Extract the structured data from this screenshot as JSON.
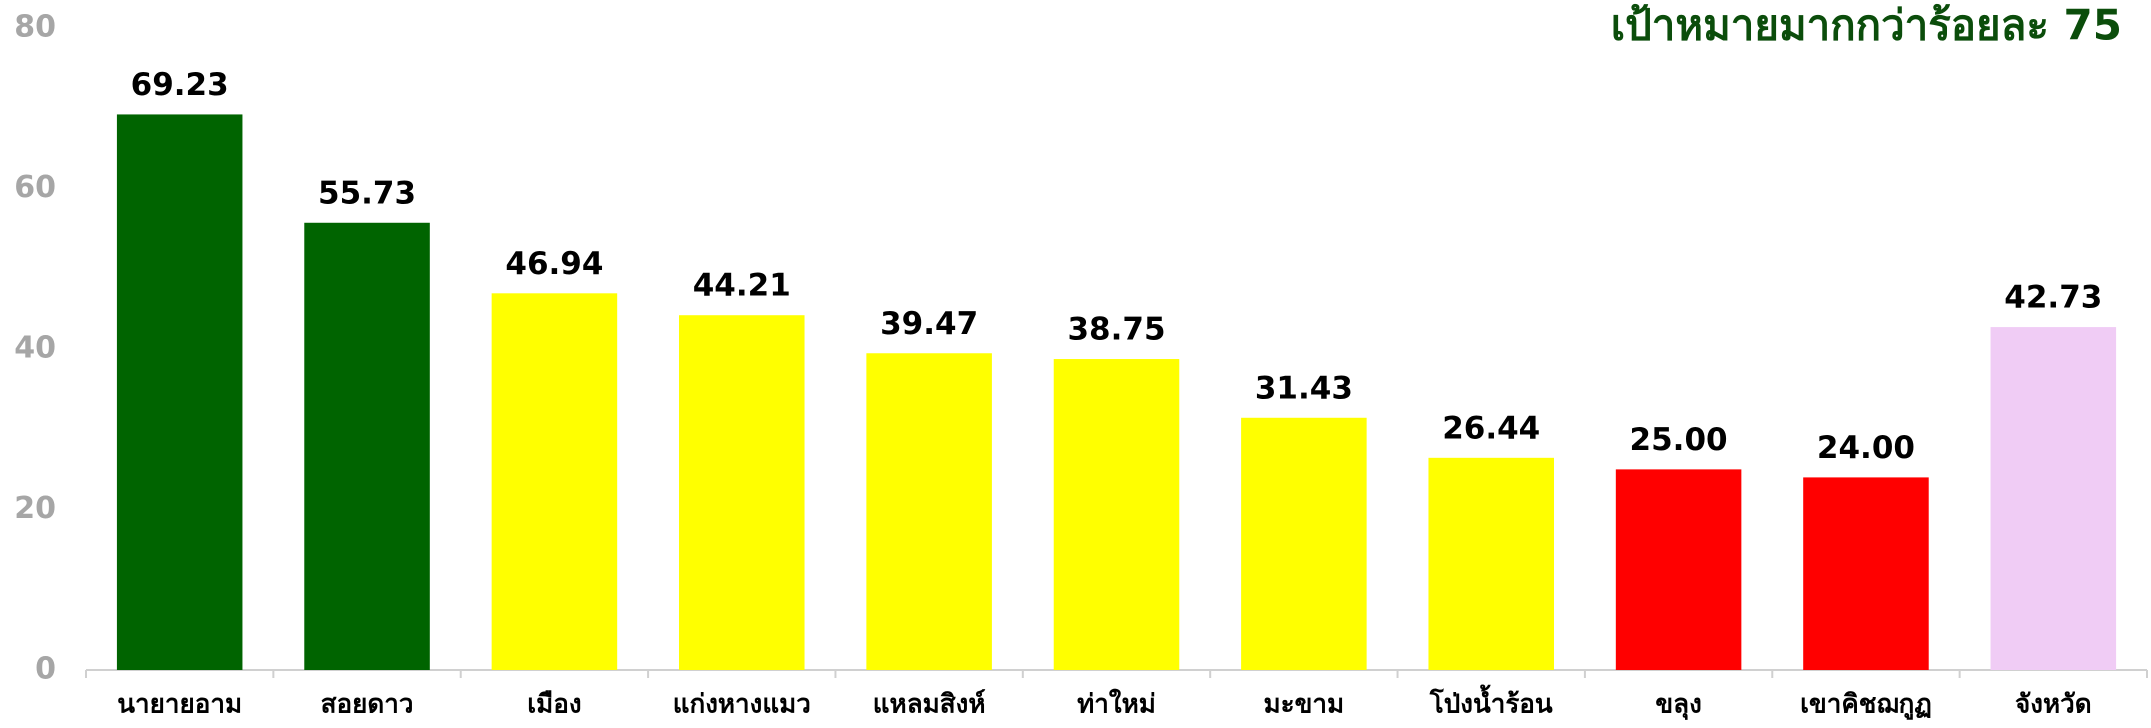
{
  "chart_data": {
    "type": "bar",
    "title": "เป้าหมายมากกว่าร้อยละ 75",
    "categories": [
      "นายายอาม",
      "สอยดาว",
      "เมือง",
      "แก่งหางแมว",
      "แหลมสิงห์",
      "ท่าใหม่",
      "มะขาม",
      "โป่งน้ำร้อน",
      "ขลุง",
      "เขาคิชฌกูฏ",
      "จังหวัด"
    ],
    "values": [
      69.23,
      55.73,
      46.94,
      44.21,
      39.47,
      38.75,
      31.43,
      26.44,
      25,
      24,
      42.73
    ],
    "value_labels": [
      "69.23",
      "55.73",
      "46.94",
      "44.21",
      "39.47",
      "38.75",
      "31.43",
      "26.44",
      "25.00",
      "24.00",
      "42.73"
    ],
    "colors": [
      "#006400",
      "#006400",
      "#ffff00",
      "#ffff00",
      "#ffff00",
      "#ffff00",
      "#ffff00",
      "#ffff00",
      "#ff0000",
      "#ff0000",
      "#f0ccf5"
    ],
    "ylim": [
      0,
      80
    ],
    "yticks": [
      0,
      20,
      40,
      60,
      80
    ],
    "grid": false
  }
}
